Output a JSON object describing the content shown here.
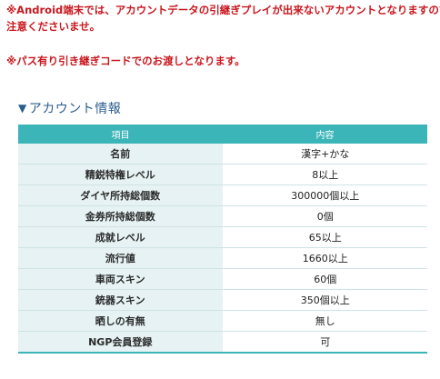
{
  "notices": {
    "line1": "※Android端末では、アカウントデータの引継ぎプレイが出来ないアカウントとなりますのでご",
    "line1b": "注意くださいませ。",
    "line2": "※パス有り引き継ぎコードでのお渡しとなります。"
  },
  "section": {
    "icon": "triangle-down-icon",
    "title": "アカウント情報"
  },
  "table": {
    "headers": [
      "項目",
      "内容"
    ],
    "rows": [
      {
        "key": "名前",
        "value": "漢字+かな"
      },
      {
        "key": "精鋭特権レベル",
        "value": "8以上"
      },
      {
        "key": "ダイヤ所持総個数",
        "value": "300000個以上"
      },
      {
        "key": "金券所持総個数",
        "value": "0個"
      },
      {
        "key": "成就レベル",
        "value": "65以上"
      },
      {
        "key": "流行値",
        "value": "1660以上"
      },
      {
        "key": "車両スキン",
        "value": "60個"
      },
      {
        "key": "銃器スキン",
        "value": "350個以上"
      },
      {
        "key": "晒しの有無",
        "value": "無し"
      },
      {
        "key": "NGP会員登録",
        "value": "可"
      }
    ]
  },
  "colors": {
    "notice": "#c8181f",
    "title": "#2a5c8f",
    "header_bg": "#3cb5b9",
    "key_bg": "#e6f2f3"
  }
}
